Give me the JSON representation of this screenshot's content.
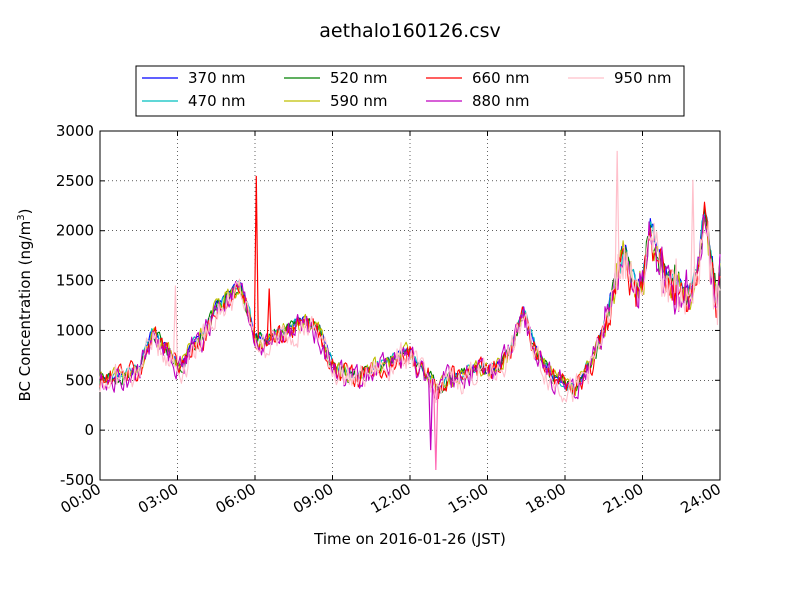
{
  "chart_data": {
    "type": "line",
    "title": "aethalo160126.csv",
    "xlabel": "Time on 2016-01-26 (JST)",
    "ylabel": "BC Concentration (ng/m",
    "ylabel_sup": "3",
    "ylabel_close": ")",
    "xlim": [
      "00:00",
      "24:00"
    ],
    "ylim": [
      -500,
      3000
    ],
    "yticks": [
      "-500",
      "0",
      "500",
      "1000",
      "1500",
      "2000",
      "2500",
      "3000"
    ],
    "yticks_values": [
      -500,
      0,
      500,
      1000,
      1500,
      2000,
      2500,
      3000
    ],
    "xticks": [
      "00:00",
      "03:00",
      "06:00",
      "09:00",
      "12:00",
      "15:00",
      "18:00",
      "21:00",
      "24:00"
    ],
    "xticks_hours": [
      0,
      3,
      6,
      9,
      12,
      15,
      18,
      21,
      24
    ],
    "grid": true,
    "legend_placement": "top-center",
    "series": [
      {
        "name": "370 nm",
        "color": "#0000ff",
        "wave": 370
      },
      {
        "name": "470 nm",
        "color": "#00bfbf",
        "wave": 470
      },
      {
        "name": "520 nm",
        "color": "#008000",
        "wave": 520
      },
      {
        "name": "590 nm",
        "color": "#bfbf00",
        "wave": 590
      },
      {
        "name": "660 nm",
        "color": "#ff0000",
        "wave": 660
      },
      {
        "name": "880 nm",
        "color": "#bf00bf",
        "wave": 880
      },
      {
        "name": "950 nm",
        "color": "#ffc0cb",
        "wave": 950
      }
    ],
    "x_hours": [
      0.0,
      0.5,
      1.0,
      1.5,
      2.0,
      2.5,
      2.9,
      3.0,
      3.2,
      3.5,
      4.0,
      4.5,
      5.0,
      5.4,
      5.8,
      6.0,
      6.1,
      6.2,
      6.3,
      6.5,
      6.6,
      7.0,
      7.5,
      8.0,
      8.5,
      9.0,
      9.5,
      10.0,
      10.5,
      11.0,
      11.5,
      12.0,
      12.3,
      12.5,
      12.9,
      13.0,
      13.2,
      13.5,
      14.0,
      14.5,
      15.0,
      15.5,
      16.0,
      16.4,
      16.6,
      17.0,
      17.5,
      18.0,
      18.4,
      18.8,
      19.0,
      19.5,
      20.0,
      20.3,
      20.5,
      20.8,
      21.0,
      21.3,
      21.7,
      22.0,
      22.4,
      22.8,
      23.1,
      23.4,
      23.6,
      23.9,
      24.0
    ],
    "base_values": [
      500,
      520,
      540,
      600,
      960,
      820,
      690,
      620,
      640,
      820,
      950,
      1220,
      1330,
      1450,
      1120,
      930,
      910,
      900,
      880,
      880,
      920,
      950,
      1040,
      1080,
      980,
      640,
      560,
      520,
      600,
      660,
      720,
      790,
      620,
      560,
      500,
      400,
      430,
      510,
      540,
      610,
      590,
      640,
      860,
      1180,
      980,
      720,
      520,
      460,
      380,
      600,
      640,
      1000,
      1500,
      1800,
      1580,
      1380,
      1450,
      2000,
      1650,
      1500,
      1450,
      1320,
      1520,
      2150,
      1800,
      1200,
      1650
    ],
    "spikes": [
      {
        "x_hour": 6.05,
        "color": "#ff0000",
        "value": 2550
      },
      {
        "x_hour": 6.55,
        "color": "#ff0000",
        "value": 1420
      },
      {
        "x_hour": 2.92,
        "color": "#ffc0cb",
        "value": 1450
      },
      {
        "x_hour": 20.02,
        "color": "#ffc0cb",
        "value": 2800
      },
      {
        "x_hour": 22.95,
        "color": "#ffc0cb",
        "value": 2510
      },
      {
        "x_hour": 13.0,
        "color": "#ff69b4",
        "value": -400
      },
      {
        "x_hour": 12.8,
        "color": "#bf00bf",
        "value": -200
      }
    ]
  }
}
